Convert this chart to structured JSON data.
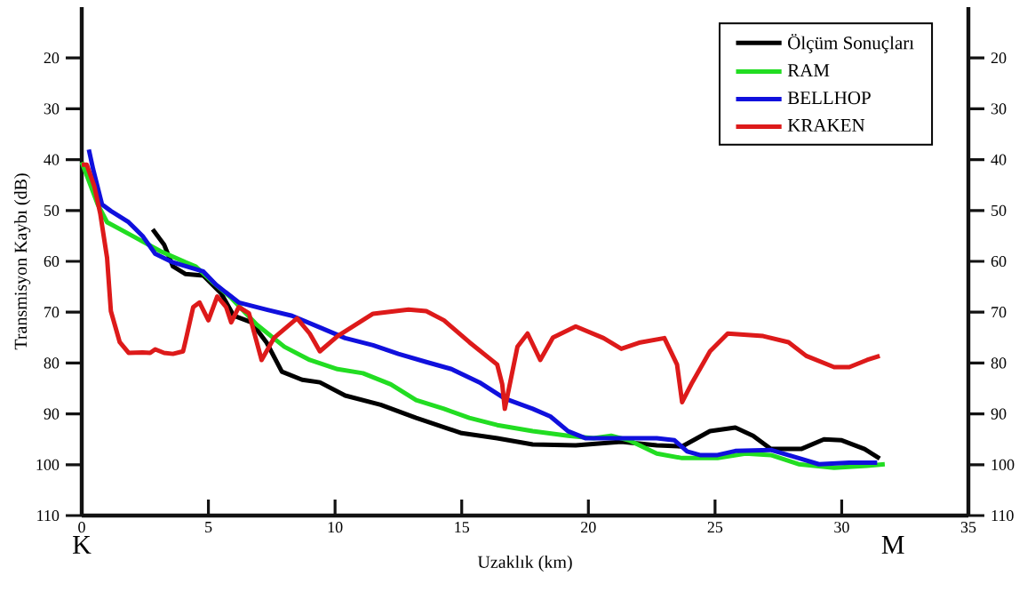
{
  "chart_data": {
    "type": "line",
    "xlabel": "Uzaklık (km)",
    "ylabel": "Transmisyon Kaybı (dB)",
    "xlim": [
      0,
      35
    ],
    "xticks": [
      0,
      5,
      10,
      15,
      20,
      25,
      30,
      35
    ],
    "ylim": [
      110,
      10
    ],
    "yticks": [
      20,
      30,
      40,
      50,
      60,
      70,
      80,
      90,
      100,
      110
    ],
    "y2lim": [
      110,
      10
    ],
    "y2ticks": [
      20,
      30,
      40,
      50,
      60,
      70,
      80,
      90,
      100,
      110
    ],
    "legend": "top right",
    "line_style": "solid",
    "annotations": [
      "K",
      "M"
    ],
    "series": [
      {
        "name": "Ölçüm Sonuçları",
        "color": "#000000",
        "x": [
          2.8,
          3.25,
          3.6,
          4.1,
          4.8,
          5.5,
          6.0,
          6.7,
          7.3,
          7.9,
          8.7,
          9.4,
          10.4,
          11.8,
          13.2,
          15,
          16.4,
          17.8,
          19.5,
          21.3,
          22.7,
          23.7,
          24.8,
          25.8,
          26.5,
          27.2,
          28.4,
          29.3,
          30,
          30.9,
          31.5
        ],
        "values": [
          53.7,
          56.7,
          61,
          62.5,
          62.8,
          66.3,
          70.7,
          72,
          76,
          81.7,
          83.3,
          83.8,
          86.4,
          88.2,
          90.8,
          93.8,
          94.8,
          96,
          96.2,
          95.5,
          96.2,
          96.4,
          93.4,
          92.7,
          94.3,
          96.9,
          96.9,
          95,
          95.2,
          96.9,
          98.8
        ]
      },
      {
        "name": "RAM",
        "color": "#22dd22",
        "x": [
          0,
          0.63,
          1.0,
          2.0,
          3.1,
          4.1,
          4.5,
          5.2,
          5.9,
          6.9,
          8.0,
          9.0,
          10.1,
          11.1,
          12.2,
          13.2,
          14.3,
          15.3,
          16.4,
          17.8,
          19.2,
          20.2,
          20.9,
          21.6,
          22.7,
          23.7,
          25.1,
          26.2,
          27.2,
          28.3,
          29.7,
          31.0,
          31.7
        ],
        "values": [
          40.5,
          48.8,
          52.3,
          55,
          58,
          60.2,
          61,
          64.2,
          67.2,
          72.4,
          76.8,
          79.4,
          81.2,
          82,
          84.2,
          87.3,
          89,
          90.8,
          92.2,
          93.4,
          94.3,
          94.8,
          94.3,
          95.2,
          97.8,
          98.7,
          98.7,
          97.8,
          98.1,
          99.9,
          100.6,
          100.2,
          99.9
        ]
      },
      {
        "name": "BELLHOP",
        "color": "#1010dd",
        "x": [
          0.28,
          0.45,
          0.8,
          1.15,
          1.85,
          2.4,
          2.9,
          3.6,
          4.8,
          5.3,
          6.2,
          7.3,
          8.3,
          9.4,
          10.4,
          11.5,
          12.5,
          13.6,
          14.6,
          15.7,
          16.7,
          17.8,
          18.5,
          19.2,
          19.9,
          21.3,
          22.7,
          23.4,
          23.9,
          24.4,
          25.1,
          25.8,
          27.2,
          28.3,
          29.1,
          30.3,
          31.4
        ],
        "values": [
          38,
          41.9,
          48.8,
          50.1,
          52.3,
          55,
          58.5,
          60.2,
          62,
          64.6,
          68.1,
          69.5,
          70.7,
          73,
          75.1,
          76.5,
          78.2,
          79.8,
          81.2,
          83.8,
          87,
          89,
          90.5,
          93.4,
          94.8,
          94.8,
          94.8,
          95.2,
          97.4,
          98.1,
          98.1,
          97.3,
          97.1,
          98.7,
          99.9,
          99.6,
          99.6
        ]
      },
      {
        "name": "KRAKEN",
        "color": "#dd1a1a",
        "x": [
          0,
          0.2,
          0.5,
          0.73,
          1.0,
          1.15,
          1.5,
          1.85,
          2.4,
          2.7,
          2.9,
          3.25,
          3.6,
          4.0,
          4.1,
          4.4,
          4.65,
          5.0,
          5.35,
          5.7,
          5.9,
          6.2,
          6.6,
          7.1,
          7.6,
          8.5,
          9.0,
          9.4,
          10.1,
          11.5,
          12.9,
          13.6,
          14.3,
          15.3,
          16.4,
          16.6,
          16.7,
          17.2,
          17.6,
          18.1,
          18.6,
          19.5,
          20.6,
          21.3,
          22,
          23,
          23.5,
          23.7,
          24.1,
          24.8,
          25.5,
          26.9,
          27.9,
          28.6,
          29.7,
          30.3,
          31,
          31.5
        ],
        "values": [
          41,
          41,
          45.3,
          50.6,
          59.3,
          69.8,
          75.9,
          78,
          77.9,
          78,
          77.3,
          78,
          78.2,
          77.7,
          75.6,
          69,
          68.1,
          71.6,
          66.9,
          69,
          72,
          69,
          70.2,
          79.4,
          75,
          71.2,
          74.2,
          77.7,
          74.7,
          70.3,
          69.5,
          69.8,
          71.6,
          75.9,
          80.3,
          84.2,
          89,
          76.8,
          74.2,
          79.4,
          75,
          72.8,
          75.1,
          77.2,
          76,
          75.1,
          80.3,
          87.7,
          83.8,
          77.7,
          74.2,
          74.7,
          75.9,
          78.6,
          80.8,
          80.8,
          79.4,
          78.6
        ]
      }
    ]
  }
}
